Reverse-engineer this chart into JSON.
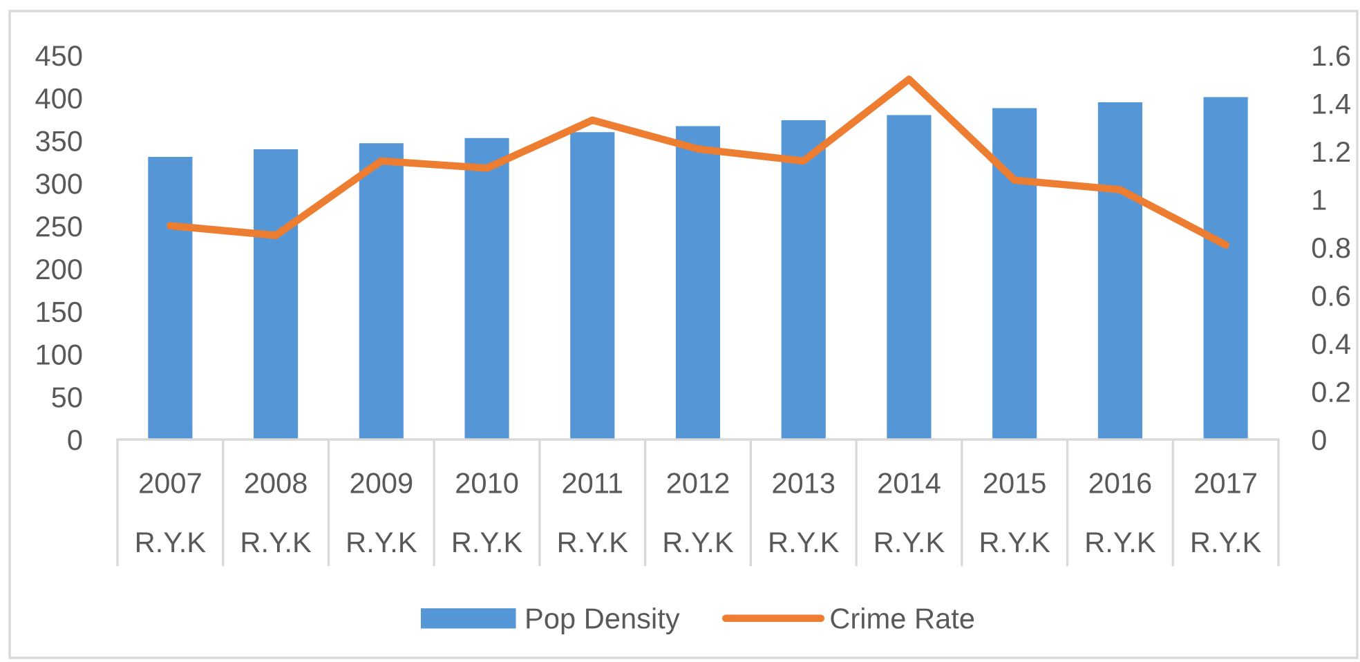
{
  "chart_data": {
    "type": "bar",
    "categories": [
      "2007\nR.Y.K",
      "2008\nR.Y.K",
      "2009\nR.Y.K",
      "2010\nR.Y.K",
      "2011\nR.Y.K",
      "2012\nR.Y.K",
      "2013\nR.Y.K",
      "2014\nR.Y.K",
      "2015\nR.Y.K",
      "2016\nR.Y.K",
      "2017\nR.Y.K"
    ],
    "series": [
      {
        "name": "Pop Density",
        "color": "#5596d6",
        "values": [
          331,
          340,
          347,
          353,
          360,
          367,
          374,
          380,
          388,
          395,
          401
        ]
      },
      {
        "name": "Crime Rate",
        "type": "line",
        "axis": "y2",
        "color": "#ed7d31",
        "line_style": "solid",
        "values": [
          0.89,
          0.85,
          1.16,
          1.13,
          1.33,
          1.21,
          1.16,
          1.5,
          1.08,
          1.04,
          0.81
        ]
      }
    ],
    "ylim": [
      0,
      450
    ],
    "yticks": [
      0,
      50,
      100,
      150,
      200,
      250,
      300,
      350,
      400,
      450
    ],
    "y2lim": [
      0,
      1.6
    ],
    "y2ticks": [
      0,
      0.2,
      0.4,
      0.6,
      0.8,
      1,
      1.2,
      1.4,
      1.6
    ],
    "legend": "bottom"
  }
}
